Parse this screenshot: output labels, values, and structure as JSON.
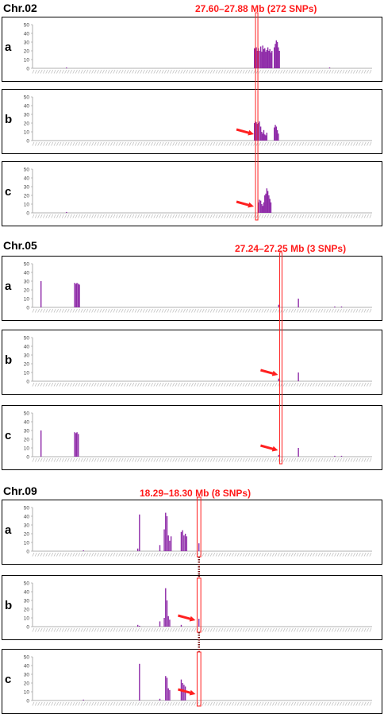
{
  "sections": [
    {
      "title": "Chr.02",
      "region_label": "27.60–27.88 Mb (272 SNPs)",
      "panels": [
        {
          "letter": "a",
          "ymax": 50,
          "yticks": [
            0,
            10,
            20,
            30,
            40,
            50
          ],
          "arrow": false,
          "bars": [
            [
              0.1,
              1
            ],
            [
              0.875,
              1
            ],
            [
              0.6535,
              23
            ],
            [
              0.656,
              22
            ],
            [
              0.659,
              24
            ],
            [
              0.662,
              20
            ],
            [
              0.665,
              23
            ],
            [
              0.668,
              20
            ],
            [
              0.672,
              25
            ],
            [
              0.675,
              19
            ],
            [
              0.678,
              26
            ],
            [
              0.681,
              22
            ],
            [
              0.684,
              23
            ],
            [
              0.687,
              19
            ],
            [
              0.69,
              21
            ],
            [
              0.693,
              24
            ],
            [
              0.696,
              20
            ],
            [
              0.699,
              22
            ],
            [
              0.702,
              18
            ],
            [
              0.705,
              20
            ],
            [
              0.712,
              24
            ],
            [
              0.715,
              28
            ],
            [
              0.718,
              32
            ],
            [
              0.721,
              30
            ],
            [
              0.724,
              24
            ],
            [
              0.727,
              20
            ]
          ]
        },
        {
          "letter": "b",
          "ymax": 50,
          "yticks": [
            0,
            10,
            20,
            30,
            40,
            50
          ],
          "arrow": true,
          "bars": [
            [
              0.6535,
              20
            ],
            [
              0.656,
              22
            ],
            [
              0.659,
              21
            ],
            [
              0.662,
              19
            ],
            [
              0.665,
              20
            ],
            [
              0.668,
              22
            ],
            [
              0.672,
              16
            ],
            [
              0.675,
              10
            ],
            [
              0.678,
              8
            ],
            [
              0.681,
              12
            ],
            [
              0.684,
              7
            ],
            [
              0.687,
              6
            ],
            [
              0.69,
              9
            ],
            [
              0.712,
              15
            ],
            [
              0.715,
              18
            ],
            [
              0.718,
              16
            ],
            [
              0.721,
              12
            ],
            [
              0.724,
              8
            ]
          ]
        },
        {
          "letter": "c",
          "ymax": 50,
          "yticks": [
            0,
            10,
            20,
            30,
            40,
            50
          ],
          "arrow": true,
          "bars": [
            [
              0.1,
              1
            ],
            [
              0.665,
              12
            ],
            [
              0.668,
              15
            ],
            [
              0.672,
              14
            ],
            [
              0.675,
              10
            ],
            [
              0.678,
              8
            ],
            [
              0.681,
              12
            ],
            [
              0.684,
              20
            ],
            [
              0.687,
              22
            ],
            [
              0.69,
              28
            ],
            [
              0.693,
              25
            ],
            [
              0.696,
              20
            ],
            [
              0.699,
              16
            ],
            [
              0.702,
              12
            ]
          ]
        }
      ]
    },
    {
      "title": "Chr.05",
      "region_label": "27.24–27.25 Mb (3 SNPs)",
      "panels": [
        {
          "letter": "a",
          "ymax": 50,
          "yticks": [
            0,
            10,
            20,
            30,
            40,
            50
          ],
          "arrow": false,
          "bars": [
            [
              0.025,
              30
            ],
            [
              0.124,
              28
            ],
            [
              0.128,
              27
            ],
            [
              0.131,
              28
            ],
            [
              0.135,
              27
            ],
            [
              0.138,
              26
            ],
            [
              0.725,
              3
            ],
            [
              0.783,
              10
            ],
            [
              0.89,
              1
            ],
            [
              0.91,
              1
            ]
          ]
        },
        {
          "letter": "b",
          "ymax": 50,
          "yticks": [
            0,
            10,
            20,
            30,
            40,
            50
          ],
          "arrow": true,
          "bars": [
            [
              0.725,
              3
            ],
            [
              0.783,
              10
            ]
          ]
        },
        {
          "letter": "c",
          "ymax": 50,
          "yticks": [
            0,
            10,
            20,
            30,
            40,
            50
          ],
          "arrow": true,
          "bars": [
            [
              0.025,
              30
            ],
            [
              0.124,
              28
            ],
            [
              0.128,
              27
            ],
            [
              0.131,
              28
            ],
            [
              0.135,
              26
            ],
            [
              0.725,
              2
            ],
            [
              0.783,
              10
            ],
            [
              0.89,
              1
            ],
            [
              0.91,
              1
            ]
          ]
        }
      ]
    },
    {
      "title": "Chr.09",
      "region_label": "18.29–18.30 Mb (8 SNPs)",
      "panels": [
        {
          "letter": "a",
          "ymax": 50,
          "yticks": [
            0,
            10,
            20,
            30,
            40,
            50
          ],
          "arrow": false,
          "bars": [
            [
              0.15,
              1
            ],
            [
              0.31,
              3
            ],
            [
              0.315,
              42
            ],
            [
              0.375,
              7
            ],
            [
              0.388,
              25
            ],
            [
              0.392,
              44
            ],
            [
              0.396,
              40
            ],
            [
              0.4,
              18
            ],
            [
              0.404,
              12
            ],
            [
              0.408,
              17
            ],
            [
              0.438,
              22
            ],
            [
              0.442,
              24
            ],
            [
              0.446,
              18
            ],
            [
              0.45,
              20
            ],
            [
              0.454,
              17
            ],
            [
              0.49,
              9
            ]
          ]
        },
        {
          "letter": "b",
          "ymax": 50,
          "yticks": [
            0,
            10,
            20,
            30,
            40,
            50
          ],
          "arrow": true,
          "bars": [
            [
              0.31,
              2
            ],
            [
              0.315,
              1
            ],
            [
              0.375,
              6
            ],
            [
              0.388,
              10
            ],
            [
              0.392,
              44
            ],
            [
              0.396,
              30
            ],
            [
              0.4,
              12
            ],
            [
              0.404,
              8
            ],
            [
              0.438,
              2
            ],
            [
              0.49,
              9
            ]
          ]
        },
        {
          "letter": "c",
          "ymax": 50,
          "yticks": [
            0,
            10,
            20,
            30,
            40,
            50
          ],
          "arrow": true,
          "bars": [
            [
              0.15,
              1
            ],
            [
              0.315,
              42
            ],
            [
              0.375,
              2
            ],
            [
              0.392,
              28
            ],
            [
              0.396,
              26
            ],
            [
              0.4,
              14
            ],
            [
              0.404,
              12
            ],
            [
              0.438,
              24
            ],
            [
              0.442,
              20
            ],
            [
              0.446,
              18
            ],
            [
              0.45,
              16
            ]
          ]
        }
      ]
    }
  ],
  "colors": {
    "bar": "#8e2aa8",
    "highlight": "#ff2020",
    "axis": "#999999",
    "tick_text": "#444444"
  }
}
